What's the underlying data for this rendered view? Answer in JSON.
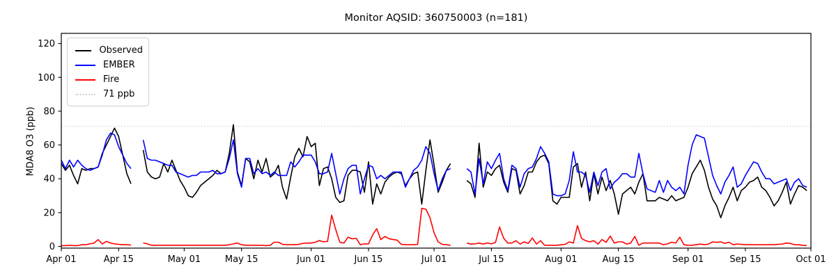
{
  "figure": {
    "title": "Monitor AQSID: 360750003 (n=181)",
    "ylabel": "MDA8 O3 (ppb)",
    "background": "#ffffff"
  },
  "legend": {
    "items": [
      {
        "label": "Observed",
        "color": "#000000",
        "style": "solid"
      },
      {
        "label": "EMBER",
        "color": "#0000ff",
        "style": "solid"
      },
      {
        "label": "Fire",
        "color": "#ff0000",
        "style": "solid"
      },
      {
        "label": "71 ppb",
        "color": "#d3d3d3",
        "style": "dotted"
      }
    ]
  },
  "chart_data": {
    "type": "line",
    "title": "Monitor AQSID: 360750003 (n=181)",
    "xlabel": "",
    "ylabel": "MDA8 O3 (ppb)",
    "ylim": [
      -1,
      126
    ],
    "yticks": [
      0,
      20,
      40,
      60,
      80,
      100,
      120
    ],
    "xlim_days": [
      0,
      183
    ],
    "x_start_date": "Apr 01",
    "xticks": [
      {
        "day": 0,
        "label": "Apr 01"
      },
      {
        "day": 14,
        "label": "Apr 15"
      },
      {
        "day": 30,
        "label": "May 01"
      },
      {
        "day": 44,
        "label": "May 15"
      },
      {
        "day": 61,
        "label": "Jun 01"
      },
      {
        "day": 75,
        "label": "Jun 15"
      },
      {
        "day": 91,
        "label": "Jul 01"
      },
      {
        "day": 105,
        "label": "Jul 15"
      },
      {
        "day": 122,
        "label": "Aug 01"
      },
      {
        "day": 136,
        "label": "Aug 15"
      },
      {
        "day": 153,
        "label": "Sep 01"
      },
      {
        "day": 167,
        "label": "Sep 15"
      },
      {
        "day": 183,
        "label": "Oct 01"
      }
    ],
    "ref_line": {
      "value": 71,
      "label": "71 ppb",
      "color": "#d3d3d3",
      "style": "dotted"
    },
    "grid": false,
    "legend_position": "upper left",
    "series": [
      {
        "name": "Observed",
        "color": "#000000",
        "values": [
          49,
          45,
          48,
          42,
          37,
          46,
          45,
          46,
          46,
          47,
          55,
          60,
          65,
          70,
          65,
          54,
          43,
          37,
          null,
          null,
          57,
          44,
          41,
          40,
          41,
          49,
          44,
          51,
          45,
          39,
          35,
          30,
          29,
          32,
          36,
          38,
          40,
          42,
          45,
          43,
          44,
          55,
          72,
          44,
          36,
          52,
          50,
          40,
          51,
          44,
          52,
          41,
          43,
          48,
          35,
          28,
          41,
          53,
          58,
          53,
          65,
          59,
          61,
          36,
          46,
          47,
          40,
          29,
          26,
          27,
          42,
          45,
          45,
          44,
          32,
          50,
          25,
          37,
          31,
          38,
          41,
          43,
          44,
          43,
          36,
          40,
          43,
          44,
          25,
          45,
          63,
          48,
          32,
          38,
          45,
          49,
          null,
          null,
          null,
          39,
          37,
          29,
          61,
          35,
          44,
          42,
          46,
          48,
          38,
          32,
          46,
          45,
          31,
          36,
          44,
          44,
          50,
          53,
          54,
          49,
          27,
          25,
          29,
          29,
          29,
          47,
          49,
          35,
          44,
          27,
          43,
          31,
          41,
          33,
          39,
          31,
          19,
          31,
          33,
          35,
          31,
          38,
          43,
          27,
          27,
          27,
          29,
          28,
          27,
          30,
          27,
          28,
          29,
          35,
          43,
          47,
          51,
          45,
          35,
          28,
          24,
          17,
          24,
          29,
          35,
          27,
          33,
          35,
          38,
          39,
          41,
          35,
          33,
          29,
          24,
          27,
          32,
          38,
          25,
          31,
          36,
          35,
          33
        ]
      },
      {
        "name": "EMBER",
        "color": "#0000ff",
        "values": [
          51,
          46,
          51,
          47,
          51,
          48,
          46,
          45,
          46,
          47,
          54,
          63,
          67,
          66,
          59,
          54,
          49,
          46,
          null,
          null,
          63,
          52,
          51,
          51,
          50,
          49,
          48,
          48,
          44,
          43,
          42,
          41,
          42,
          42,
          44,
          44,
          44,
          45,
          43,
          43,
          44,
          52,
          63,
          43,
          35,
          52,
          52,
          43,
          46,
          43,
          44,
          42,
          44,
          42,
          42,
          42,
          50,
          47,
          50,
          54,
          54,
          54,
          50,
          43,
          43,
          44,
          55,
          43,
          31,
          40,
          46,
          48,
          48,
          31,
          40,
          48,
          47,
          40,
          42,
          40,
          42,
          44,
          44,
          44,
          35,
          40,
          45,
          47,
          51,
          59,
          55,
          43,
          33,
          40,
          45,
          46,
          null,
          null,
          null,
          46,
          44,
          31,
          52,
          37,
          50,
          46,
          51,
          55,
          40,
          33,
          48,
          46,
          35,
          43,
          46,
          47,
          52,
          59,
          55,
          50,
          31,
          30,
          30,
          31,
          39,
          56,
          44,
          44,
          42,
          32,
          44,
          36,
          44,
          46,
          34,
          38,
          40,
          43,
          43,
          41,
          41,
          55,
          43,
          34,
          33,
          32,
          39,
          32,
          39,
          35,
          33,
          35,
          31,
          48,
          60,
          66,
          65,
          64,
          53,
          42,
          36,
          31,
          38,
          42,
          47,
          35,
          37,
          42,
          46,
          50,
          49,
          44,
          40,
          40,
          37,
          38,
          39,
          40,
          33,
          38,
          40,
          36,
          35
        ]
      },
      {
        "name": "Fire",
        "color": "#ff0000",
        "values": [
          0.5,
          0.5,
          0.7,
          0.5,
          0.5,
          1,
          1,
          1.5,
          2,
          4,
          1.5,
          3,
          2,
          1.5,
          1.2,
          1,
          1,
          0.8,
          null,
          null,
          2,
          1.5,
          0.7,
          0.7,
          0.7,
          0.7,
          0.7,
          0.7,
          0.7,
          0.7,
          0.7,
          0.7,
          0.7,
          0.7,
          0.7,
          0.7,
          0.7,
          0.7,
          0.7,
          0.7,
          0.7,
          1,
          1.5,
          2,
          1,
          0.7,
          0.7,
          0.7,
          0.7,
          0.7,
          0.5,
          0.7,
          2.5,
          2.5,
          1.2,
          1,
          1,
          1,
          1.2,
          1.8,
          2,
          2,
          2.5,
          3.5,
          2.7,
          3,
          18.5,
          10,
          2.5,
          2,
          5.5,
          4.5,
          4.8,
          1,
          1.5,
          1.5,
          6.8,
          10.5,
          4,
          5.9,
          4.5,
          4.1,
          3.7,
          1.2,
          1,
          1,
          1,
          1.2,
          22.5,
          22,
          17,
          8,
          2.7,
          1.2,
          1,
          0.7,
          null,
          null,
          null,
          2,
          1.4,
          1.5,
          2,
          1.4,
          2,
          1.5,
          2.4,
          11.5,
          4.8,
          2,
          2,
          3.4,
          1.4,
          2.7,
          1.8,
          5,
          1.4,
          3.4,
          0.7,
          0.7,
          0.7,
          0.7,
          1,
          1.2,
          2.7,
          2,
          12.3,
          4.8,
          3.4,
          2.7,
          3.4,
          1.4,
          4.1,
          2.4,
          6.1,
          2,
          2.7,
          2.7,
          1.4,
          2,
          5.9,
          0.7,
          2,
          2,
          2,
          2,
          2,
          1,
          1.5,
          2.5,
          2,
          5.5,
          1,
          0.7,
          0.7,
          1,
          1.4,
          1,
          1.4,
          2.7,
          2.4,
          2.7,
          1.8,
          2.5,
          1,
          1.4,
          1.2,
          1,
          1,
          1,
          1,
          1,
          1,
          1,
          1,
          1.2,
          1.4,
          2,
          1.8,
          1,
          1,
          0.7,
          0.5
        ]
      }
    ]
  }
}
